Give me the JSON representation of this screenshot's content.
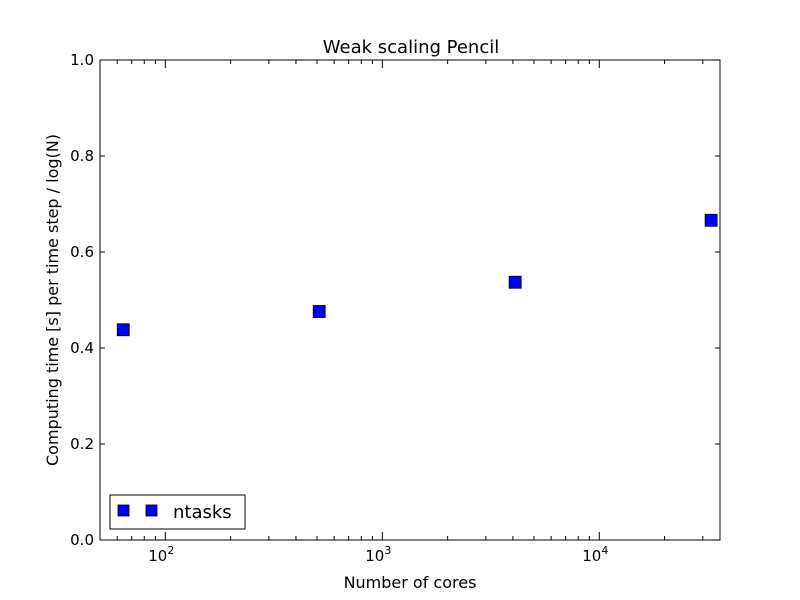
{
  "chart_data": {
    "type": "scatter",
    "title": "Weak scaling Pencil",
    "xlabel": "Number of cores",
    "ylabel": "Computing time [s] per time step / log(N)",
    "x_scale": "log",
    "xlim": [
      50,
      36000
    ],
    "ylim": [
      0.0,
      1.0
    ],
    "y_ticks": [
      "0.0",
      "0.2",
      "0.4",
      "0.6",
      "0.8",
      "1.0"
    ],
    "x_ticks": [
      {
        "value": 100,
        "base": "10",
        "exp": "2"
      },
      {
        "value": 1000,
        "base": "10",
        "exp": "3"
      },
      {
        "value": 10000,
        "base": "10",
        "exp": "4"
      }
    ],
    "grid": false,
    "legend": {
      "position": "lower-left"
    },
    "series": [
      {
        "name": "ntasks",
        "marker": "square",
        "color": "#0000ff",
        "x": [
          64,
          512,
          4096,
          32768
        ],
        "y": [
          0.438,
          0.476,
          0.537,
          0.666
        ]
      }
    ]
  }
}
